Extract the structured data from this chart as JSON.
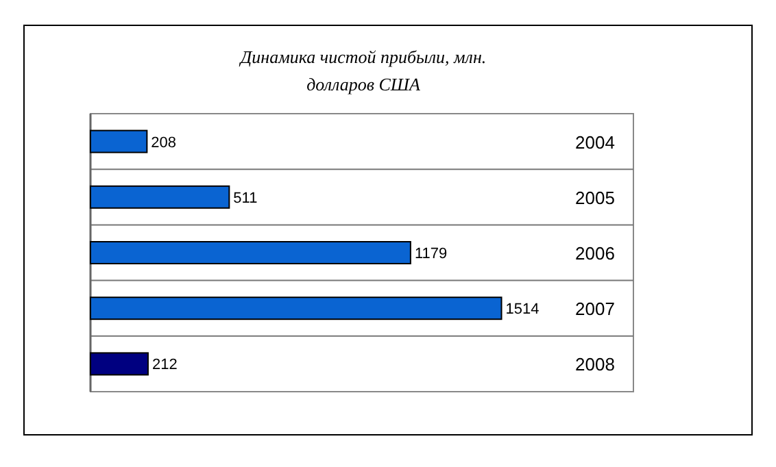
{
  "chart_data": {
    "type": "bar",
    "orientation": "horizontal",
    "title": "Динамика чистой прибыли, млн. долларов США",
    "categories": [
      "2004",
      "2005",
      "2006",
      "2007",
      "2008"
    ],
    "values": [
      208,
      511,
      1179,
      1514,
      212
    ],
    "colors": [
      "#0a64d2",
      "#0a64d2",
      "#0a64d2",
      "#0a64d2",
      "#000080"
    ],
    "data_labels": true,
    "grid": "y"
  }
}
